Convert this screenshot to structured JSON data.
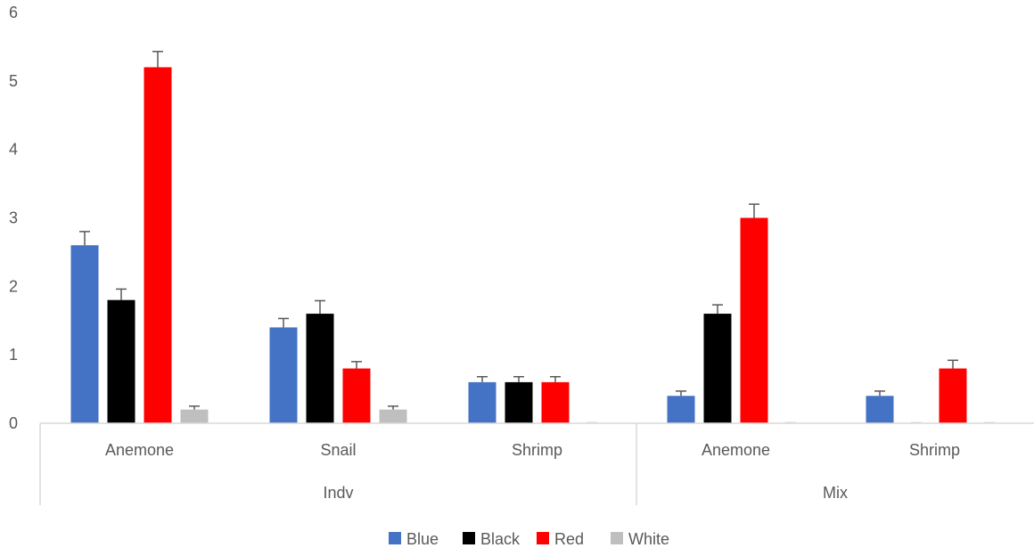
{
  "chart_data": {
    "type": "bar",
    "groups": [
      {
        "name": "Indv",
        "categories": [
          "Anemone",
          "Snail",
          "Shrimp"
        ]
      },
      {
        "name": "Mix",
        "categories": [
          "Anemone",
          "Shrimp"
        ]
      }
    ],
    "series": [
      {
        "name": "Blue",
        "color": "#4472C4",
        "values": [
          2.6,
          1.4,
          0.6,
          0.4,
          0.4
        ],
        "errors": [
          0.2,
          0.13,
          0.08,
          0.07,
          0.07
        ]
      },
      {
        "name": "Black",
        "color": "#000000",
        "values": [
          1.8,
          1.6,
          0.6,
          1.6,
          0.0
        ],
        "errors": [
          0.16,
          0.19,
          0.08,
          0.13,
          0.0
        ]
      },
      {
        "name": "Red",
        "color": "#FF0000",
        "values": [
          5.2,
          0.8,
          0.6,
          3.0,
          0.8
        ],
        "errors": [
          0.23,
          0.1,
          0.08,
          0.2,
          0.12
        ]
      },
      {
        "name": "White",
        "color": "#BFBFBF",
        "values": [
          0.2,
          0.2,
          0.0,
          0.0,
          0.0
        ],
        "errors": [
          0.05,
          0.05,
          0.0,
          0.0,
          0.0
        ]
      }
    ],
    "ylim": [
      0,
      6
    ],
    "yticks": [
      "0",
      "1",
      "2",
      "3",
      "4",
      "5",
      "6"
    ],
    "grid": false,
    "legend": "bottom-center",
    "title": "",
    "xlabel": "",
    "ylabel": ""
  }
}
